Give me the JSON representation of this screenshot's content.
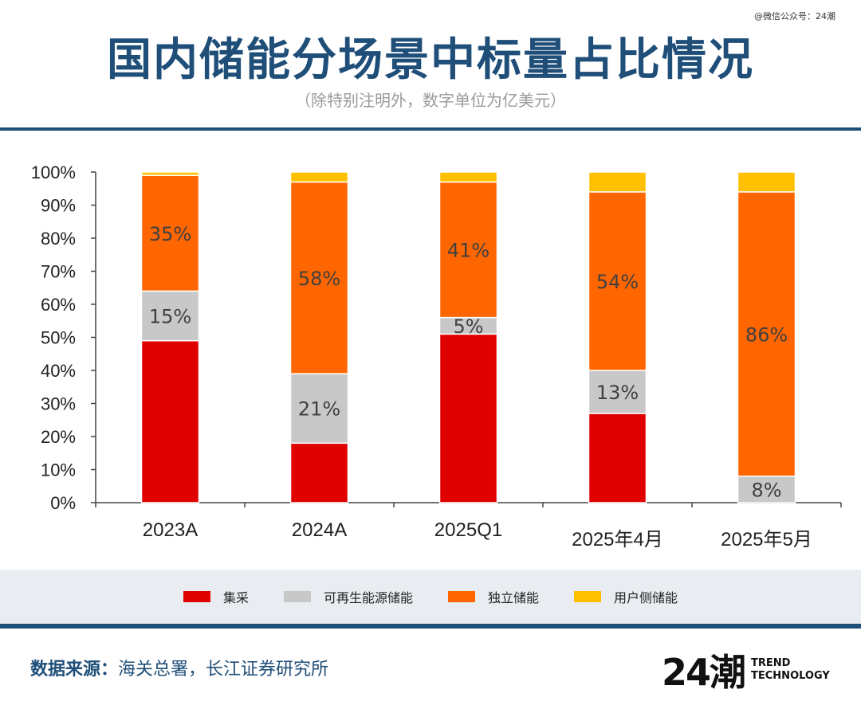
{
  "watermark": "@微信公众号：24潮",
  "title": "国内储能分场景中标量占比情况",
  "subtitle": "（除特别注明外，数字单位为亿美元）",
  "source": {
    "label": "数据来源：",
    "text": "海关总署，长江证券研究所"
  },
  "logo": {
    "mark": "24潮",
    "line1": "TREND",
    "line2": "TECHNOLOGY"
  },
  "chart_data": {
    "type": "bar",
    "stacked": true,
    "categories": [
      "2023A",
      "2024A",
      "2025Q1",
      "2025年4月",
      "2025年5月"
    ],
    "ylim": [
      0,
      100
    ],
    "yticks": [
      "0%",
      "10%",
      "20%",
      "30%",
      "40%",
      "50%",
      "60%",
      "70%",
      "80%",
      "90%",
      "100%"
    ],
    "grid": false,
    "legend_position": "bottom",
    "series": [
      {
        "name": "集采",
        "color": "#e00000",
        "values": [
          49,
          18,
          51,
          27,
          0
        ],
        "labels": [
          "",
          "",
          "",
          "",
          ""
        ]
      },
      {
        "name": "可再生能源储能",
        "color": "#c8c8c8",
        "values": [
          15,
          21,
          5,
          13,
          8
        ],
        "labels": [
          "15%",
          "21%",
          "5%",
          "13%",
          "8%"
        ]
      },
      {
        "name": "独立储能",
        "color": "#ff6600",
        "values": [
          35,
          58,
          41,
          54,
          86
        ],
        "labels": [
          "35%",
          "58%",
          "41%",
          "54%",
          "86%"
        ]
      },
      {
        "name": "用户侧储能",
        "color": "#ffc000",
        "values": [
          1,
          3,
          3,
          6,
          6
        ],
        "labels": [
          "",
          "",
          "",
          "",
          ""
        ]
      }
    ]
  }
}
